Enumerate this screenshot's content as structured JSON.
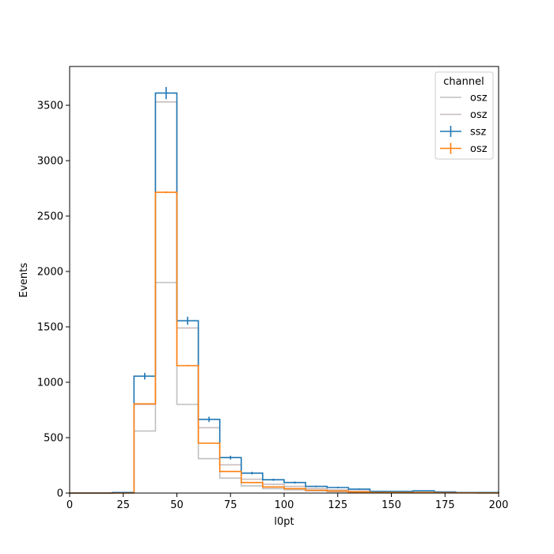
{
  "chart_data": {
    "type": "histogram-step",
    "title": "",
    "xlabel": "l0pt",
    "ylabel": "Events",
    "xlim": [
      0,
      200
    ],
    "ylim": [
      0,
      3850
    ],
    "xticks": [
      "0",
      "25",
      "50",
      "75",
      "100",
      "125",
      "150",
      "175",
      "200"
    ],
    "yticks": [
      "0",
      "500",
      "1000",
      "1500",
      "2000",
      "2500",
      "3000",
      "3500"
    ],
    "grid": false,
    "legend": {
      "title": "channel",
      "placement": "top-right",
      "entries": [
        "osz",
        "osz",
        "ssz",
        "osz"
      ]
    },
    "bin_edges": [
      0,
      10,
      20,
      30,
      40,
      50,
      60,
      70,
      80,
      90,
      100,
      110,
      120,
      130,
      140,
      150,
      160,
      170,
      180,
      190,
      200
    ],
    "series": [
      {
        "name": "osz",
        "style": "step",
        "color": "#c0c0c0",
        "values": [
          0,
          0,
          3,
          560,
          1900,
          800,
          310,
          135,
          65,
          40,
          30,
          20,
          12,
          8,
          5,
          4,
          3,
          2,
          2,
          1
        ]
      },
      {
        "name": "osz",
        "style": "step",
        "color": "#c8bcbc",
        "values": [
          0,
          0,
          4,
          800,
          3530,
          1490,
          590,
          255,
          125,
          80,
          60,
          40,
          28,
          18,
          12,
          9,
          8,
          5,
          3,
          2
        ]
      },
      {
        "name": "ssz",
        "style": "step-errorbar",
        "color": "#1f77b4",
        "values": [
          0,
          0,
          5,
          1055,
          3610,
          1555,
          665,
          320,
          180,
          120,
          95,
          60,
          50,
          35,
          15,
          15,
          20,
          10,
          5,
          5
        ],
        "errors": [
          0,
          0,
          2,
          30,
          55,
          36,
          24,
          17,
          12,
          10,
          9,
          7,
          7,
          6,
          4,
          4,
          4,
          3,
          2,
          2
        ]
      },
      {
        "name": "osz",
        "style": "step-errorbar",
        "color": "#ff7f0e",
        "values": [
          0,
          0,
          0,
          805,
          2715,
          1150,
          450,
          195,
          95,
          55,
          40,
          25,
          18,
          10,
          5,
          5,
          5,
          3,
          2,
          1
        ],
        "errors": [
          0,
          0,
          0,
          5,
          8,
          6,
          4,
          3,
          2,
          2,
          2,
          1,
          1,
          1,
          1,
          1,
          1,
          1,
          1,
          1
        ]
      }
    ]
  }
}
